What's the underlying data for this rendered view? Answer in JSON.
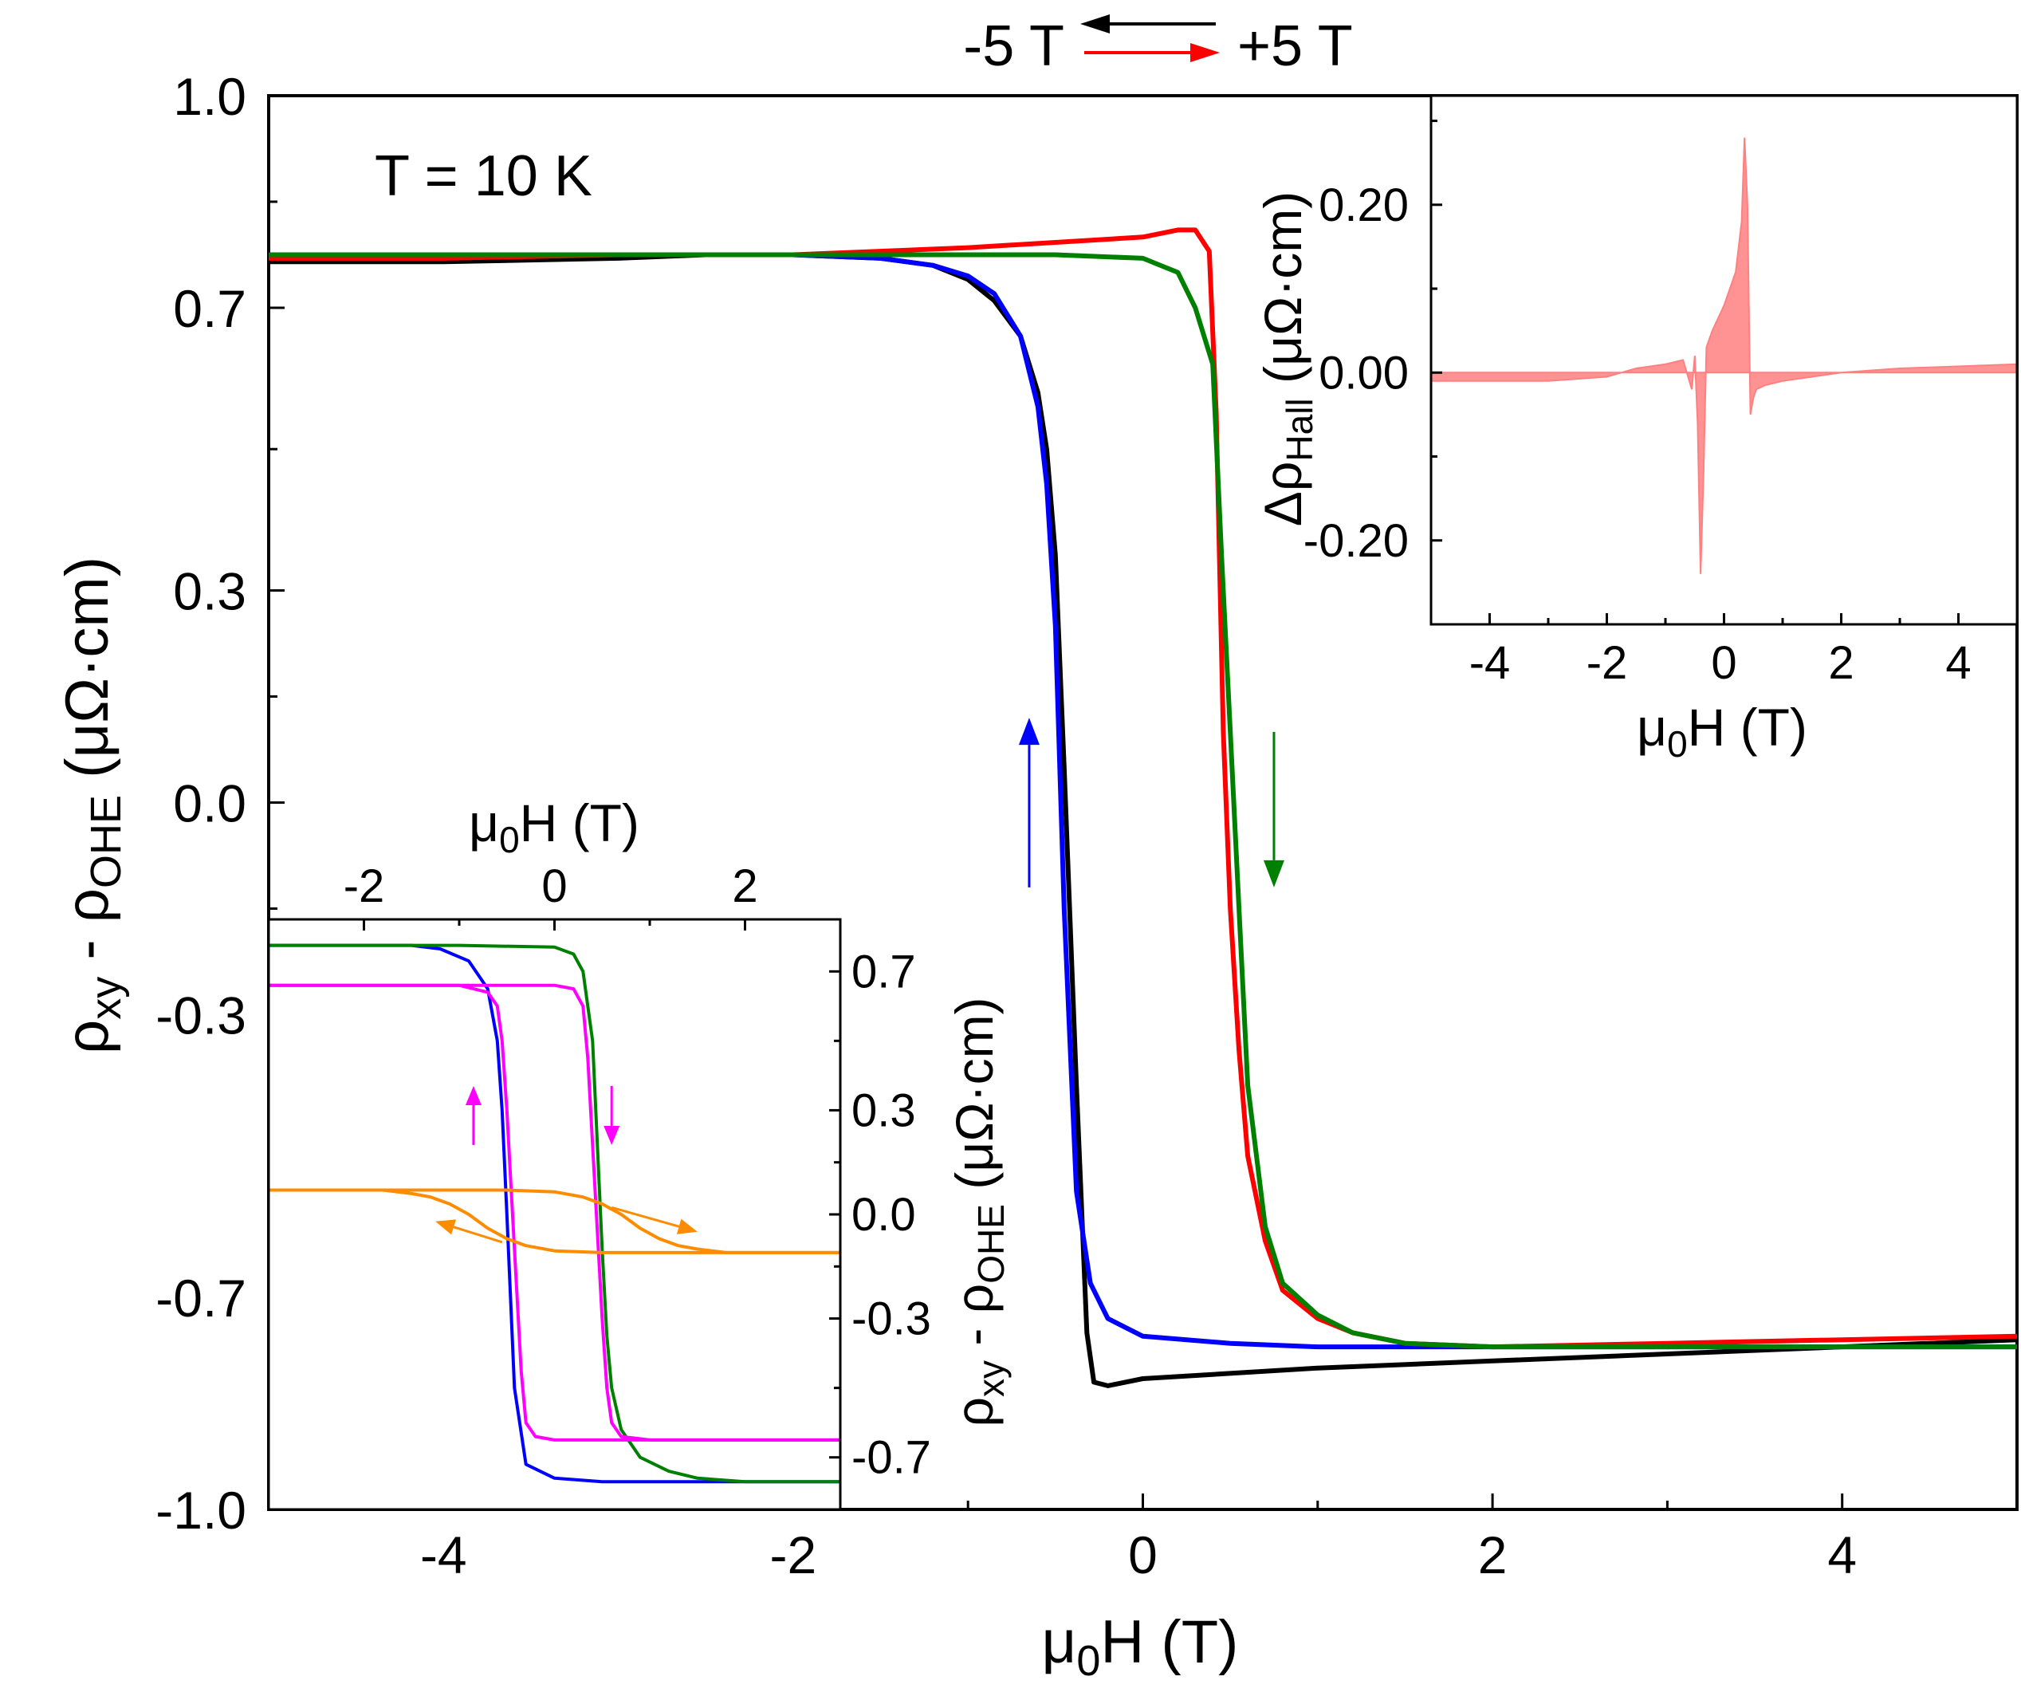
{
  "chart_data": [
    {
      "id": "main",
      "type": "line",
      "title": "",
      "annotation": "T = 10 K",
      "xlabel": {
        "base": "μ",
        "sub": "0",
        "rest": "H (T)"
      },
      "ylabel": {
        "a": "ρ",
        "a_sub": "xy",
        "mid": " - ρ",
        "b_sub": "OHE",
        "unit": " (μΩ·cm)"
      },
      "xlim": [
        -5,
        5
      ],
      "ylim": [
        -1.0,
        1.0
      ],
      "xticks": [
        -4,
        -2,
        0,
        2,
        4
      ],
      "yticks": [
        -1.0,
        -0.7,
        -0.3,
        0.0,
        0.3,
        0.7,
        1.0
      ],
      "ytick_labels": [
        "-1.0",
        "-0.7",
        "-0.3",
        "0.0",
        "0.3",
        "0.7",
        "1.0"
      ],
      "grid": false,
      "legend": {
        "sweep_down_label": "-5 T",
        "sweep_up_label": "+5 T",
        "sweep_down_color": "#000000",
        "sweep_up_color": "#ff0000"
      },
      "series": [
        {
          "name": "black (sweep +5 T → -5 T, measured)",
          "color": "#000000",
          "x": [
            5,
            4,
            3,
            2,
            1,
            0,
            -0.2,
            -0.28,
            -0.32,
            -0.38,
            -0.45,
            -0.5,
            -0.55,
            -0.6,
            -0.7,
            -0.85,
            -1.0,
            -1.2,
            -1.5,
            -2.0,
            -2.5,
            -3,
            -4,
            -5
          ],
          "y": [
            -0.76,
            -0.77,
            -0.78,
            -0.79,
            -0.8,
            -0.815,
            -0.825,
            -0.82,
            -0.75,
            -0.4,
            0.05,
            0.35,
            0.5,
            0.58,
            0.66,
            0.71,
            0.74,
            0.76,
            0.77,
            0.775,
            0.775,
            0.77,
            0.765,
            0.765
          ]
        },
        {
          "name": "blue (sweep +5 T → -5 T)",
          "color": "#0000ff",
          "x": [
            5,
            4,
            3,
            2,
            1,
            0.5,
            0,
            -0.2,
            -0.3,
            -0.38,
            -0.45,
            -0.5,
            -0.55,
            -0.6,
            -0.7,
            -0.85,
            -1.0,
            -1.2,
            -1.5,
            -2.0,
            -5
          ],
          "y": [
            -0.77,
            -0.77,
            -0.77,
            -0.77,
            -0.77,
            -0.765,
            -0.755,
            -0.73,
            -0.68,
            -0.55,
            -0.15,
            0.25,
            0.45,
            0.56,
            0.66,
            0.72,
            0.745,
            0.76,
            0.77,
            0.775,
            0.775
          ]
        },
        {
          "name": "red (sweep -5 T → +5 T, measured)",
          "color": "#ff0000",
          "x": [
            -5,
            -4,
            -3,
            -2,
            -1,
            0,
            0.2,
            0.3,
            0.38,
            0.42,
            0.46,
            0.5,
            0.55,
            0.6,
            0.7,
            0.8,
            1.0,
            1.2,
            1.5,
            2.0,
            3,
            4,
            5
          ],
          "y": [
            0.77,
            0.77,
            0.775,
            0.775,
            0.785,
            0.8,
            0.81,
            0.81,
            0.78,
            0.55,
            0.1,
            -0.15,
            -0.35,
            -0.5,
            -0.62,
            -0.69,
            -0.73,
            -0.75,
            -0.765,
            -0.77,
            -0.765,
            -0.76,
            -0.755
          ]
        },
        {
          "name": "green (sweep -5 T → +5 T)",
          "color": "#008000",
          "x": [
            -5,
            -3,
            -1,
            -0.5,
            0,
            0.2,
            0.3,
            0.4,
            0.45,
            0.5,
            0.55,
            0.6,
            0.7,
            0.8,
            1.0,
            1.2,
            1.5,
            2.0,
            3,
            5
          ],
          "y": [
            0.775,
            0.775,
            0.775,
            0.775,
            0.77,
            0.75,
            0.7,
            0.62,
            0.35,
            0.1,
            -0.15,
            -0.4,
            -0.6,
            -0.68,
            -0.725,
            -0.75,
            -0.765,
            -0.77,
            -0.77,
            -0.77
          ]
        }
      ],
      "annotations": [
        {
          "type": "arrow",
          "color": "#0000ff",
          "x": -0.65,
          "y_from": -0.12,
          "y_to": 0.12,
          "direction": "up"
        },
        {
          "type": "arrow",
          "color": "#008000",
          "x": 0.75,
          "y_from": 0.1,
          "y_to": -0.12,
          "direction": "down"
        }
      ]
    },
    {
      "id": "inset-top-right",
      "type": "line",
      "title": "",
      "xlabel": {
        "base": "μ",
        "sub": "0",
        "rest": "H (T)"
      },
      "ylabel": {
        "a": "Δρ",
        "a_sub": "Hall",
        "unit": " (μΩ·cm)"
      },
      "xlim": [
        -5,
        5
      ],
      "ylim": [
        -0.3,
        0.33
      ],
      "xticks": [
        -4,
        -2,
        0,
        2,
        4
      ],
      "yticks": [
        -0.2,
        0.0,
        0.2
      ],
      "ytick_labels": [
        "-0.20",
        "0.00",
        "0.20"
      ],
      "grid": false,
      "series": [
        {
          "name": "ΔρHall (red - black difference)",
          "color": "#ff8080",
          "x": [
            -5,
            -3,
            -2,
            -1.5,
            -1,
            -0.7,
            -0.55,
            -0.5,
            -0.45,
            -0.4,
            -0.35,
            -0.3,
            -0.2,
            0,
            0.2,
            0.3,
            0.35,
            0.4,
            0.45,
            0.5,
            0.55,
            0.7,
            1,
            1.5,
            2,
            3,
            5
          ],
          "y": [
            -0.01,
            -0.01,
            -0.005,
            0.005,
            0.01,
            0.015,
            -0.02,
            0.02,
            -0.06,
            -0.24,
            -0.12,
            0.03,
            0.05,
            0.08,
            0.12,
            0.18,
            0.28,
            0.2,
            -0.05,
            -0.03,
            -0.02,
            -0.015,
            -0.01,
            -0.005,
            0.0,
            0.005,
            0.01
          ]
        }
      ]
    },
    {
      "id": "inset-bottom-left",
      "type": "line",
      "title": "",
      "xlabel": {
        "base": "μ",
        "sub": "0",
        "rest": "H (T)"
      },
      "ylabel": {
        "a": "ρ",
        "a_sub": "xy",
        "mid": " - ρ",
        "b_sub": "OHE",
        "unit": " (μΩ·cm)"
      },
      "xlim": [
        -3,
        3
      ],
      "ylim": [
        -0.85,
        0.85
      ],
      "xticks": [
        -2,
        0,
        2
      ],
      "yticks": [
        -0.7,
        -0.3,
        0.0,
        0.3,
        0.7
      ],
      "ytick_labels": [
        "-0.7",
        "-0.3",
        "0.0",
        "0.3",
        "0.7"
      ],
      "grid": false,
      "series": [
        {
          "name": "blue",
          "color": "#0000ff",
          "x": [
            3,
            1.5,
            0.5,
            0,
            -0.3,
            -0.42,
            -0.5,
            -0.55,
            -0.6,
            -0.7,
            -0.9,
            -1.2,
            -1.5,
            -2,
            -3
          ],
          "y": [
            -0.77,
            -0.77,
            -0.77,
            -0.76,
            -0.72,
            -0.5,
            0.0,
            0.3,
            0.5,
            0.65,
            0.73,
            0.765,
            0.775,
            0.775,
            0.775
          ]
        },
        {
          "name": "green",
          "color": "#008000",
          "x": [
            -3,
            -1,
            0,
            0.2,
            0.3,
            0.4,
            0.45,
            0.5,
            0.55,
            0.6,
            0.7,
            0.9,
            1.2,
            1.5,
            2,
            3
          ],
          "y": [
            0.775,
            0.775,
            0.77,
            0.75,
            0.7,
            0.5,
            0.2,
            -0.1,
            -0.35,
            -0.5,
            -0.62,
            -0.7,
            -0.74,
            -0.76,
            -0.77,
            -0.77
          ]
        },
        {
          "name": "magenta down",
          "color": "#ff00ff",
          "x": [
            -3,
            -1,
            0,
            0.2,
            0.3,
            0.35,
            0.4,
            0.45,
            0.5,
            0.55,
            0.6,
            0.7,
            1,
            3
          ],
          "y": [
            0.66,
            0.66,
            0.66,
            0.65,
            0.6,
            0.45,
            0.2,
            -0.05,
            -0.3,
            -0.5,
            -0.6,
            -0.64,
            -0.65,
            -0.65
          ]
        },
        {
          "name": "magenta up",
          "color": "#ff00ff",
          "x": [
            3,
            1,
            0,
            -0.2,
            -0.3,
            -0.35,
            -0.4,
            -0.45,
            -0.5,
            -0.55,
            -0.6,
            -0.7,
            -1,
            -3
          ],
          "y": [
            -0.65,
            -0.65,
            -0.65,
            -0.64,
            -0.6,
            -0.45,
            -0.2,
            0.05,
            0.3,
            0.5,
            0.6,
            0.64,
            0.66,
            0.66
          ]
        },
        {
          "name": "orange down",
          "color": "#ff8c00",
          "x": [
            -3,
            -1.5,
            -0.5,
            0,
            0.3,
            0.5,
            0.7,
            0.9,
            1.1,
            1.3,
            1.5,
            1.8,
            2.2,
            3
          ],
          "y": [
            0.07,
            0.07,
            0.07,
            0.065,
            0.05,
            0.03,
            0.0,
            -0.04,
            -0.07,
            -0.09,
            -0.1,
            -0.11,
            -0.11,
            -0.11
          ]
        },
        {
          "name": "orange up",
          "color": "#ff8c00",
          "x": [
            3,
            1.5,
            0.5,
            0,
            -0.3,
            -0.5,
            -0.7,
            -0.9,
            -1.1,
            -1.3,
            -1.5,
            -1.8,
            -2.2,
            -3
          ],
          "y": [
            -0.11,
            -0.11,
            -0.11,
            -0.105,
            -0.09,
            -0.07,
            -0.04,
            0.0,
            0.03,
            0.05,
            0.06,
            0.07,
            0.07,
            0.07
          ]
        }
      ],
      "annotations": [
        {
          "type": "arrow",
          "color": "#ff00ff",
          "x": -0.85,
          "y_from": 0.2,
          "y_to": 0.37,
          "direction": "up"
        },
        {
          "type": "arrow",
          "color": "#ff00ff",
          "x": 0.6,
          "y_from": 0.37,
          "y_to": 0.2,
          "direction": "down"
        },
        {
          "type": "arrow",
          "color": "#ff8c00",
          "x_from": 0.6,
          "x_to": 1.5,
          "y_from": 0.02,
          "y_to": -0.05,
          "direction": "right"
        },
        {
          "type": "arrow",
          "color": "#ff8c00",
          "x_from": -0.55,
          "x_to": -1.25,
          "y_from": -0.08,
          "y_to": -0.02,
          "direction": "left"
        }
      ]
    }
  ]
}
